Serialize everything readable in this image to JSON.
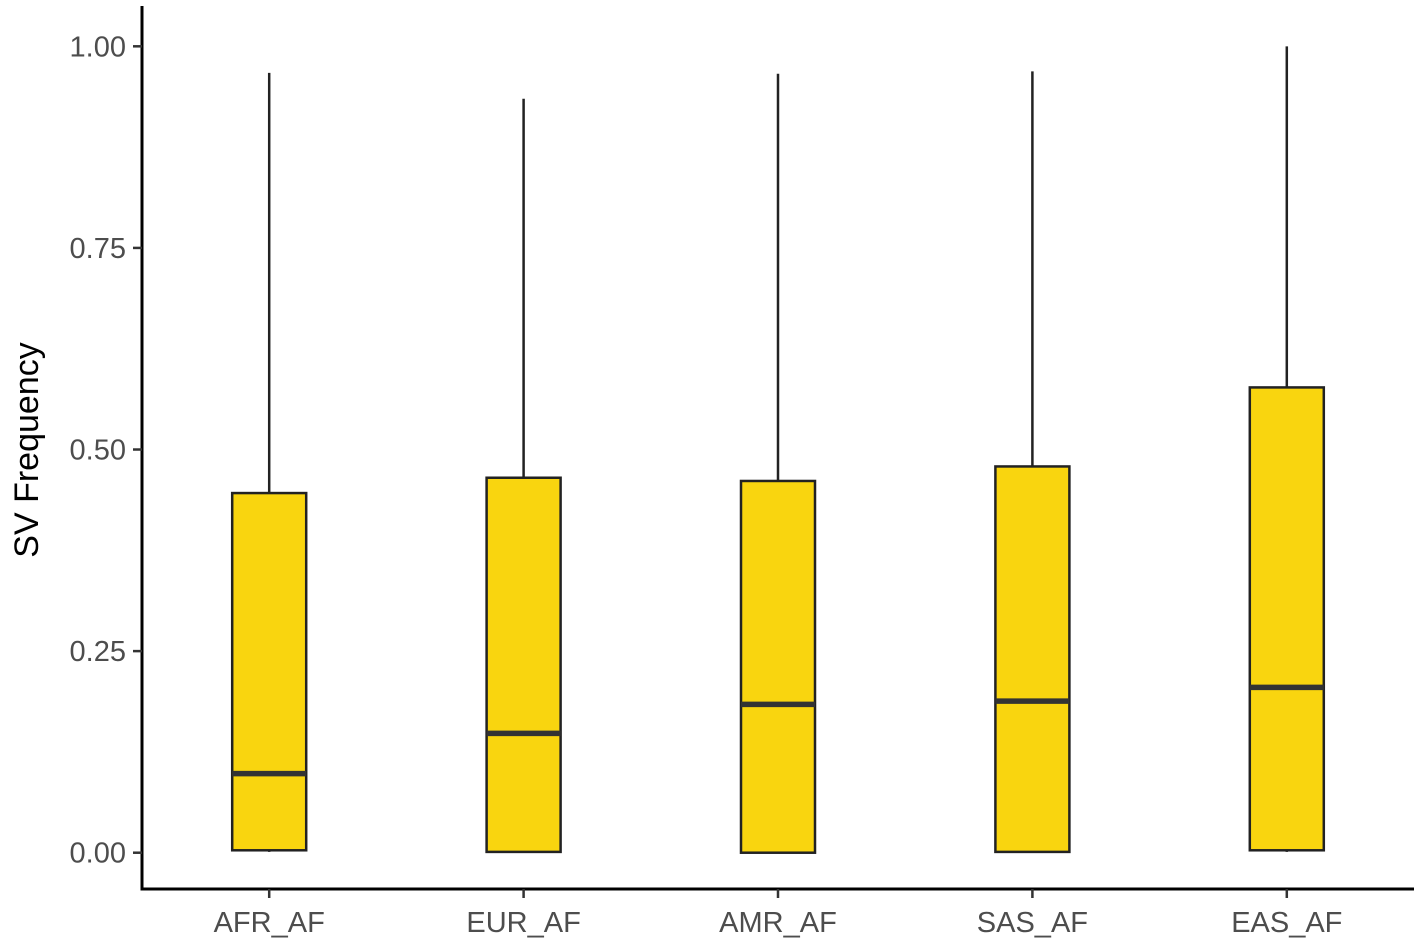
{
  "chart_data": {
    "type": "boxplot",
    "title": "",
    "xlabel": "",
    "ylabel": "SV Frequency",
    "ylim": [
      -0.045,
      1.05
    ],
    "yticks": [
      {
        "value": 0.0,
        "label": "0.00"
      },
      {
        "value": 0.25,
        "label": "0.25"
      },
      {
        "value": 0.5,
        "label": "0.50"
      },
      {
        "value": 0.75,
        "label": "0.75"
      },
      {
        "value": 1.0,
        "label": "1.00"
      }
    ],
    "grid": false,
    "legend": "none",
    "box_fill": "#f9d50f",
    "box_stroke": "#222222",
    "median_stroke": "#333333",
    "categories": [
      "AFR_AF",
      "EUR_AF",
      "AMR_AF",
      "SAS_AF",
      "EAS_AF"
    ],
    "boxes": [
      {
        "category": "AFR_AF",
        "min": 0.001,
        "q1": 0.003,
        "median": 0.098,
        "q3": 0.446,
        "max": 0.967
      },
      {
        "category": "EUR_AF",
        "min": 0.001,
        "q1": 0.001,
        "median": 0.148,
        "q3": 0.465,
        "max": 0.935
      },
      {
        "category": "AMR_AF",
        "min": 0.0,
        "q1": 0.0,
        "median": 0.184,
        "q3": 0.461,
        "max": 0.966
      },
      {
        "category": "SAS_AF",
        "min": 0.001,
        "q1": 0.001,
        "median": 0.188,
        "q3": 0.479,
        "max": 0.969
      },
      {
        "category": "EAS_AF",
        "min": 0.001,
        "q1": 0.003,
        "median": 0.205,
        "q3": 0.577,
        "max": 1.0
      }
    ]
  }
}
